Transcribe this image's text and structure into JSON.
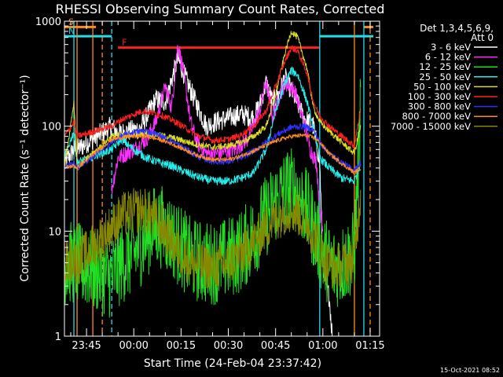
{
  "chart_data": {
    "type": "line",
    "title": "RHESSI Observing Summary Count Rates, Corrected",
    "xlabel": "Start Time (24-Feb-04 23:37:42)",
    "ylabel": "Corrected Count Rate (s⁻¹ detector⁻¹)",
    "yscale": "log",
    "ylim": [
      1,
      1000
    ],
    "xlim": [
      "23:38",
      "01:18"
    ],
    "x_tick_labels": [
      "23:45",
      "00:00",
      "00:15",
      "00:30",
      "00:45",
      "01:00",
      "01:15"
    ],
    "y_tick_labels": [
      "1",
      "10",
      "100",
      "1000"
    ],
    "timestamp": "15-Oct-2021 08:52",
    "legend": {
      "placement": "top-right",
      "header": [
        "Det 1,3,4,5,6,9,",
        "Att 0"
      ]
    },
    "flags": [
      {
        "label": "S",
        "color": "#ff8c1a",
        "start": "23:38",
        "end": "23:48",
        "level": 880
      },
      {
        "label": "N",
        "color": "#22ddee",
        "start": "23:38",
        "end": "23:53",
        "level": 720
      },
      {
        "label": "F",
        "color": "#ff2020",
        "start": "23:55",
        "end": "00:59",
        "level": 560
      },
      {
        "label": "",
        "color": "#22ddee",
        "start": "00:59",
        "end": "01:16",
        "level": 720
      },
      {
        "label": "",
        "color": "#ff8c1a",
        "start": "01:13",
        "end": "01:16",
        "level": 880
      }
    ],
    "vlines": [
      {
        "time": "23:41",
        "color": "#22ddee",
        "style": "solid"
      },
      {
        "time": "23:42",
        "color": "#ff8c1a",
        "style": "solid"
      },
      {
        "time": "23:47",
        "color": "#ff8c1a",
        "style": "solid"
      },
      {
        "time": "23:50",
        "color": "#ff8c1a",
        "style": "dashed"
      },
      {
        "time": "23:53",
        "color": "#22ddee",
        "style": "dashed"
      },
      {
        "time": "00:59",
        "color": "#22ddee",
        "style": "solid"
      },
      {
        "time": "01:10",
        "color": "#ff8c1a",
        "style": "solid"
      },
      {
        "time": "01:13",
        "color": "#22ddee",
        "style": "solid"
      },
      {
        "time": "01:15",
        "color": "#ff8c1a",
        "style": "dashed"
      }
    ],
    "series": [
      {
        "name": "3 - 6 keV",
        "color": "#ffffff",
        "noise": 0.1,
        "points": [
          [
            "23:38",
            45
          ],
          [
            "23:41",
            60
          ],
          [
            "23:42",
            60
          ],
          [
            "23:53",
            100
          ],
          [
            "23:55",
            85
          ],
          [
            "00:02",
            95
          ],
          [
            "00:07",
            180
          ],
          [
            "00:10",
            170
          ],
          [
            "00:14",
            440
          ],
          [
            "00:17",
            260
          ],
          [
            "00:20",
            160
          ],
          [
            "00:23",
            100
          ],
          [
            "00:26",
            110
          ],
          [
            "00:30",
            120
          ],
          [
            "00:34",
            130
          ],
          [
            "00:38",
            120
          ],
          [
            "00:40",
            160
          ],
          [
            "00:42",
            260
          ],
          [
            "00:44",
            170
          ],
          [
            "00:46",
            200
          ],
          [
            "00:48",
            290
          ],
          [
            "00:51",
            190
          ],
          [
            "00:54",
            120
          ],
          [
            "00:57",
            100
          ],
          [
            "00:59",
            45
          ],
          [
            "01:00",
            5
          ],
          [
            "01:01",
            3
          ],
          [
            "01:02",
            2.4
          ],
          [
            "01:03",
            1
          ]
        ]
      },
      {
        "name": "6 - 12 keV",
        "color": "#ff30ff",
        "noise": 0.08,
        "points": [
          [
            "23:53",
            25
          ],
          [
            "23:55",
            50
          ],
          [
            "00:00",
            60
          ],
          [
            "00:04",
            75
          ],
          [
            "00:07",
            110
          ],
          [
            "00:10",
            240
          ],
          [
            "00:12",
            150
          ],
          [
            "00:14",
            620
          ],
          [
            "00:16",
            300
          ],
          [
            "00:18",
            110
          ],
          [
            "00:20",
            70
          ],
          [
            "00:23",
            55
          ],
          [
            "00:26",
            55
          ],
          [
            "00:32",
            60
          ],
          [
            "00:36",
            75
          ],
          [
            "00:40",
            140
          ],
          [
            "00:42",
            270
          ],
          [
            "00:44",
            120
          ],
          [
            "00:46",
            190
          ],
          [
            "00:48",
            260
          ],
          [
            "00:51",
            220
          ],
          [
            "00:54",
            110
          ],
          [
            "00:56",
            60
          ],
          [
            "00:58",
            45
          ],
          [
            "00:59",
            16
          ],
          [
            "01:00",
            10
          ]
        ]
      },
      {
        "name": "12 - 25 keV",
        "color": "#22dd22",
        "noise": 0.4,
        "points": [
          [
            "23:38",
            5
          ],
          [
            "23:41",
            5
          ],
          [
            "23:53",
            3.6
          ],
          [
            "23:56",
            5
          ],
          [
            "00:00",
            6
          ],
          [
            "00:03",
            8
          ],
          [
            "00:06",
            11
          ],
          [
            "00:09",
            11
          ],
          [
            "00:12",
            9
          ],
          [
            "00:15",
            7
          ],
          [
            "00:18",
            5.5
          ],
          [
            "00:22",
            5
          ],
          [
            "00:26",
            5
          ],
          [
            "00:30",
            5.5
          ],
          [
            "00:34",
            6.5
          ],
          [
            "00:38",
            9
          ],
          [
            "00:42",
            14
          ],
          [
            "00:46",
            21
          ],
          [
            "00:49",
            26
          ],
          [
            "00:51",
            25
          ],
          [
            "00:54",
            18
          ],
          [
            "00:57",
            11
          ],
          [
            "01:00",
            6
          ],
          [
            "01:03",
            4.5
          ],
          [
            "01:07",
            5
          ],
          [
            "01:10",
            6.5
          ],
          [
            "01:12",
            150
          ]
        ]
      },
      {
        "name": "25 - 50 keV",
        "color": "#22eeee",
        "noise": 0.04,
        "points": [
          [
            "23:38",
            50
          ],
          [
            "23:41",
            90
          ],
          [
            "23:42",
            45
          ],
          [
            "23:53",
            60
          ],
          [
            "23:56",
            75
          ],
          [
            "00:00",
            60
          ],
          [
            "00:04",
            50
          ],
          [
            "00:08",
            45
          ],
          [
            "00:12",
            42
          ],
          [
            "00:15",
            38
          ],
          [
            "00:20",
            33
          ],
          [
            "00:25",
            30
          ],
          [
            "00:30",
            30
          ],
          [
            "00:34",
            32
          ],
          [
            "00:38",
            36
          ],
          [
            "00:42",
            60
          ],
          [
            "00:45",
            140
          ],
          [
            "00:48",
            260
          ],
          [
            "00:50",
            340
          ],
          [
            "00:52",
            310
          ],
          [
            "00:55",
            170
          ],
          [
            "00:57",
            95
          ],
          [
            "00:59",
            50
          ],
          [
            "01:02",
            40
          ],
          [
            "01:06",
            32
          ],
          [
            "01:10",
            30
          ],
          [
            "01:12",
            45
          ]
        ]
      },
      {
        "name": "50 - 100 keV",
        "color": "#dddd22",
        "noise": 0.03,
        "points": [
          [
            "23:38",
            40
          ],
          [
            "23:41",
            170
          ],
          [
            "23:42",
            40
          ],
          [
            "23:53",
            80
          ],
          [
            "23:56",
            82
          ],
          [
            "00:00",
            84
          ],
          [
            "00:04",
            86
          ],
          [
            "00:08",
            82
          ],
          [
            "00:12",
            78
          ],
          [
            "00:16",
            72
          ],
          [
            "00:20",
            67
          ],
          [
            "00:25",
            63
          ],
          [
            "00:30",
            65
          ],
          [
            "00:34",
            70
          ],
          [
            "00:38",
            80
          ],
          [
            "00:42",
            100
          ],
          [
            "00:45",
            200
          ],
          [
            "00:48",
            500
          ],
          [
            "00:50",
            800
          ],
          [
            "00:52",
            700
          ],
          [
            "00:55",
            350
          ],
          [
            "00:57",
            150
          ],
          [
            "00:59",
            110
          ],
          [
            "01:02",
            90
          ],
          [
            "01:06",
            70
          ],
          [
            "01:10",
            55
          ],
          [
            "01:12",
            100
          ]
        ]
      },
      {
        "name": "100 - 300 keV",
        "color": "#ff2020",
        "noise": 0.03,
        "points": [
          [
            "23:38",
            80
          ],
          [
            "23:41",
            110
          ],
          [
            "23:42",
            80
          ],
          [
            "23:53",
            100
          ],
          [
            "23:56",
            115
          ],
          [
            "00:00",
            130
          ],
          [
            "00:03",
            140
          ],
          [
            "00:08",
            130
          ],
          [
            "00:12",
            115
          ],
          [
            "00:16",
            98
          ],
          [
            "00:20",
            82
          ],
          [
            "00:25",
            73
          ],
          [
            "00:30",
            75
          ],
          [
            "00:34",
            82
          ],
          [
            "00:38",
            100
          ],
          [
            "00:42",
            140
          ],
          [
            "00:45",
            240
          ],
          [
            "00:48",
            420
          ],
          [
            "00:50",
            560
          ],
          [
            "00:52",
            520
          ],
          [
            "00:55",
            320
          ],
          [
            "00:57",
            170
          ],
          [
            "00:59",
            125
          ],
          [
            "01:02",
            100
          ],
          [
            "01:06",
            80
          ],
          [
            "01:10",
            65
          ],
          [
            "01:12",
            150
          ]
        ]
      },
      {
        "name": "300 - 800 keV",
        "color": "#3030ff",
        "noise": 0.03,
        "points": [
          [
            "23:38",
            40
          ],
          [
            "23:41",
            45
          ],
          [
            "23:42",
            40
          ],
          [
            "23:53",
            70
          ],
          [
            "23:56",
            80
          ],
          [
            "00:00",
            88
          ],
          [
            "00:04",
            90
          ],
          [
            "00:08",
            82
          ],
          [
            "00:12",
            72
          ],
          [
            "00:16",
            62
          ],
          [
            "00:20",
            52
          ],
          [
            "00:25",
            46
          ],
          [
            "00:30",
            46
          ],
          [
            "00:34",
            50
          ],
          [
            "00:38",
            58
          ],
          [
            "00:42",
            70
          ],
          [
            "00:46",
            85
          ],
          [
            "00:50",
            98
          ],
          [
            "00:54",
            100
          ],
          [
            "00:57",
            92
          ],
          [
            "00:59",
            70
          ],
          [
            "01:02",
            55
          ],
          [
            "01:06",
            45
          ],
          [
            "01:10",
            38
          ],
          [
            "01:12",
            45
          ]
        ]
      },
      {
        "name": "800 - 7000 keV",
        "color": "#ff8c1a",
        "noise": 0.02,
        "points": [
          [
            "23:38",
            40
          ],
          [
            "23:41",
            42
          ],
          [
            "23:42",
            40
          ],
          [
            "23:53",
            75
          ],
          [
            "23:56",
            78
          ],
          [
            "00:00",
            80
          ],
          [
            "00:04",
            80
          ],
          [
            "00:08",
            75
          ],
          [
            "00:12",
            68
          ],
          [
            "00:16",
            60
          ],
          [
            "00:20",
            53
          ],
          [
            "00:25",
            48
          ],
          [
            "00:30",
            48
          ],
          [
            "00:34",
            52
          ],
          [
            "00:38",
            58
          ],
          [
            "00:42",
            66
          ],
          [
            "00:46",
            74
          ],
          [
            "00:50",
            80
          ],
          [
            "00:54",
            82
          ],
          [
            "00:57",
            78
          ],
          [
            "00:59",
            70
          ],
          [
            "01:02",
            55
          ],
          [
            "01:06",
            44
          ],
          [
            "01:10",
            36
          ],
          [
            "01:12",
            40
          ]
        ]
      },
      {
        "name": "7000 - 15000 keV",
        "color": "#888800",
        "noise": 0.22,
        "points": [
          [
            "23:38",
            5
          ],
          [
            "23:41",
            5.5
          ],
          [
            "23:42",
            5
          ],
          [
            "23:53",
            11
          ],
          [
            "23:56",
            14
          ],
          [
            "00:00",
            15.5
          ],
          [
            "00:03",
            16
          ],
          [
            "00:06",
            14
          ],
          [
            "00:09",
            11
          ],
          [
            "00:12",
            8
          ],
          [
            "00:15",
            6
          ],
          [
            "00:18",
            5
          ],
          [
            "00:22",
            4.7
          ],
          [
            "00:26",
            4.5
          ],
          [
            "00:30",
            5
          ],
          [
            "00:34",
            6
          ],
          [
            "00:38",
            8
          ],
          [
            "00:42",
            11
          ],
          [
            "00:46",
            14
          ],
          [
            "00:49",
            16
          ],
          [
            "00:52",
            15
          ],
          [
            "00:55",
            12
          ],
          [
            "00:58",
            8
          ],
          [
            "01:01",
            5
          ],
          [
            "01:04",
            4.5
          ],
          [
            "01:08",
            5
          ],
          [
            "01:10",
            5.5
          ],
          [
            "01:12",
            25
          ]
        ]
      }
    ]
  }
}
